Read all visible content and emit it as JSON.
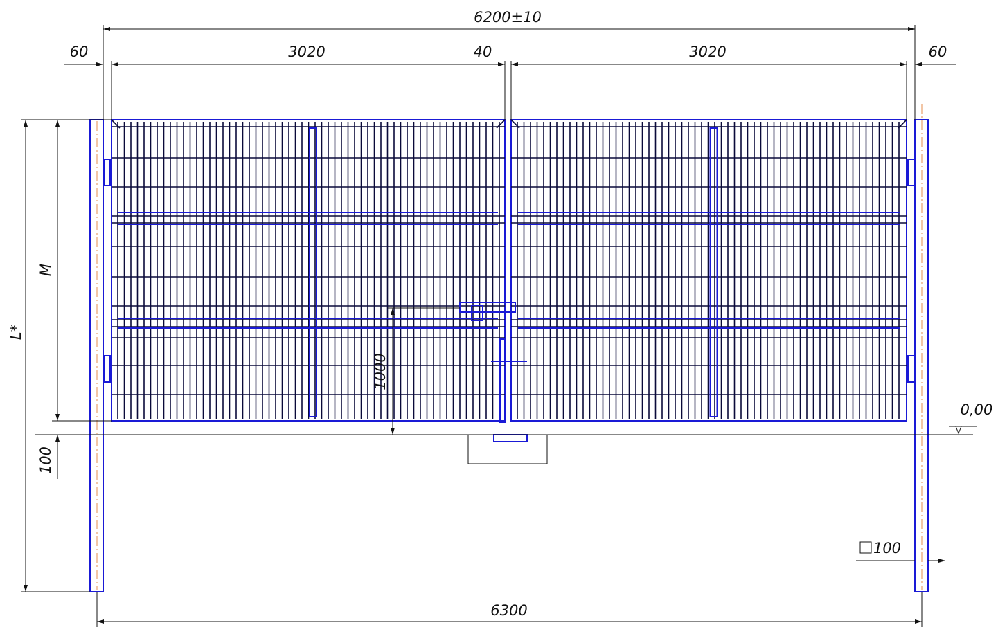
{
  "dimensions": {
    "overall_width": "6200±10",
    "left_gap": "60",
    "left_leaf": "3020",
    "center_gap": "40",
    "right_leaf": "3020",
    "right_gap": "60",
    "total_height": "L*",
    "gate_height": "M",
    "ground_clearance": "100",
    "latch_height": "1000",
    "ground_level": "0,00",
    "post_section": "100",
    "post_span": "6300"
  }
}
